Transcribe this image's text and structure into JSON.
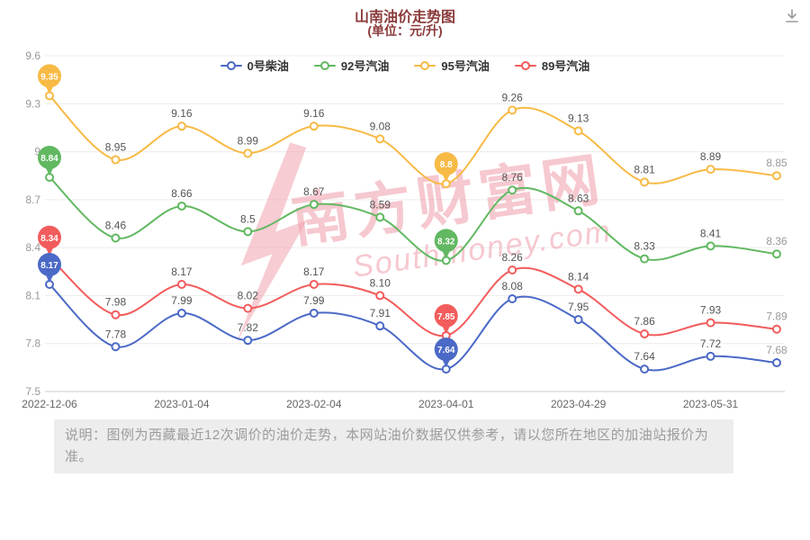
{
  "header": {
    "title": "山南油价走势图",
    "subtitle": "(单位：元/升)",
    "title_color": "#8b3a3a"
  },
  "icons": {
    "download": "save-as-image"
  },
  "legend": {
    "items": [
      {
        "label": "0号柴油",
        "color": "#4b69c6"
      },
      {
        "label": "92号汽油",
        "color": "#61b861"
      },
      {
        "label": "95号汽油",
        "color": "#f7ba45"
      },
      {
        "label": "89号汽油",
        "color": "#f25c5c"
      }
    ]
  },
  "chart_data": {
    "type": "line",
    "title": "山南油价走势图",
    "subtitle": "(单位：元/升)",
    "x_labels": [
      "2022-12-06",
      "2023-01-04",
      "2023-02-04",
      "2023-04-01",
      "2023-04-29",
      "2023-05-31"
    ],
    "x_label_indices": [
      0,
      2,
      4,
      6,
      8,
      10
    ],
    "num_points": 12,
    "y_ticks": [
      7.5,
      7.8,
      8.1,
      8.4,
      8.7,
      9,
      9.3,
      9.6
    ],
    "ylim": [
      7.5,
      9.6
    ],
    "grid": true,
    "smooth": true,
    "legend_position": "top",
    "series": [
      {
        "name": "0号柴油",
        "color": "#4b69c6",
        "pin_indices": [
          0,
          6
        ],
        "values": [
          "8.17",
          "7.78",
          "7.99",
          "7.82",
          "7.99",
          "7.91",
          "7.64",
          "8.08",
          "7.95",
          "7.64",
          "7.72",
          "7.68"
        ]
      },
      {
        "name": "92号汽油",
        "color": "#61b861",
        "pin_indices": [
          0,
          6
        ],
        "values": [
          "8.84",
          "8.46",
          "8.66",
          "8.5",
          "8.67",
          "8.59",
          "8.32",
          "8.76",
          "8.63",
          "8.33",
          "8.41",
          "8.36"
        ]
      },
      {
        "name": "95号汽油",
        "color": "#f7ba45",
        "pin_indices": [
          0,
          6
        ],
        "values": [
          "9.35",
          "8.95",
          "9.16",
          "8.99",
          "9.16",
          "9.08",
          "8.8",
          "9.26",
          "9.13",
          "8.81",
          "8.89",
          "8.85"
        ]
      },
      {
        "name": "89号汽油",
        "color": "#f25c5c",
        "pin_indices": [
          0,
          6
        ],
        "values": [
          "8.34",
          "7.98",
          "8.17",
          "8.02",
          "8.17",
          "8.10",
          "7.85",
          "8.26",
          "8.14",
          "7.86",
          "7.93",
          "7.89"
        ]
      }
    ],
    "colors": {
      "grid": "#ececec",
      "axis_line": "#cccccc",
      "y_tick_label": "#999999",
      "x_tick_label": "#666666",
      "data_label": "#555555",
      "last_data_label": "#999999",
      "pin_text": "#ffffff"
    }
  },
  "watermark": {
    "line1": "南方财富网",
    "line2": "Southmoney.com",
    "color": "#ef9aa8"
  },
  "footer": {
    "note": "说明：图例为西藏最近12次调价的油价走势，本网站油价数据仅供参考，请以您所在地区的加油站报价为准。"
  }
}
